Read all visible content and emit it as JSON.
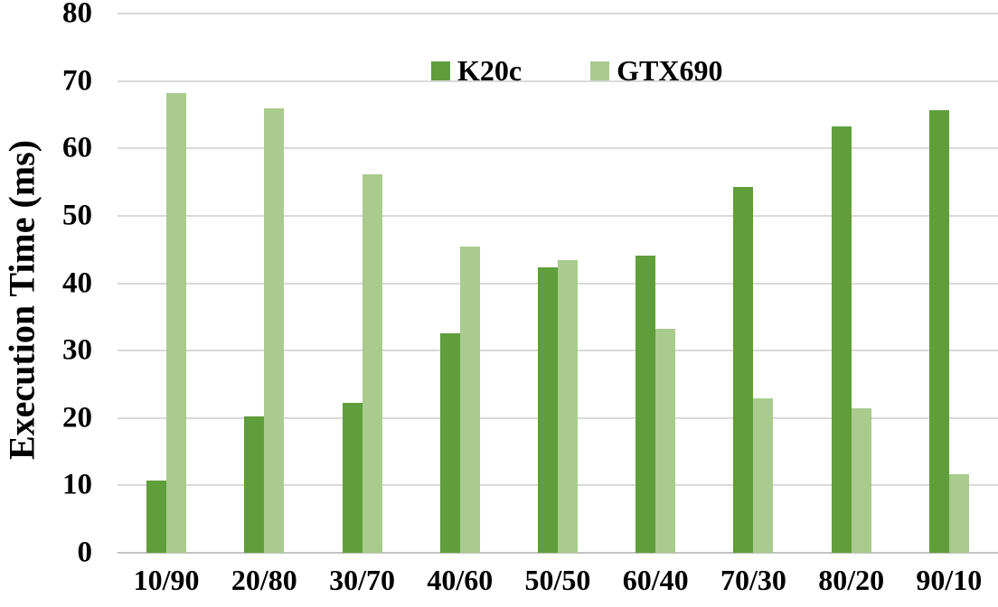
{
  "chart_data": {
    "type": "bar",
    "title": "",
    "xlabel": "",
    "ylabel": "Execution Time (ms)",
    "ylim": [
      0,
      80
    ],
    "yticks": [
      0,
      10,
      20,
      30,
      40,
      50,
      60,
      70,
      80
    ],
    "grid": true,
    "legend_position": "top-center",
    "categories": [
      "10/90",
      "20/80",
      "30/70",
      "40/60",
      "50/50",
      "60/40",
      "70/30",
      "80/20",
      "90/10"
    ],
    "series": [
      {
        "name": "K20c",
        "color": "#5f9e3b",
        "values": [
          10.7,
          20.2,
          22.2,
          32.5,
          42.4,
          44.1,
          54.3,
          63.2,
          65.6
        ]
      },
      {
        "name": "GTX690",
        "color": "#a9cb8d",
        "values": [
          68.2,
          65.9,
          56.1,
          45.4,
          43.4,
          33.2,
          22.9,
          21.5,
          11.6
        ]
      }
    ],
    "colors": {
      "gridline": "#d9d9d9",
      "baseline": "#c3c3c3",
      "text": "#000000",
      "background": "#ffffff"
    }
  }
}
